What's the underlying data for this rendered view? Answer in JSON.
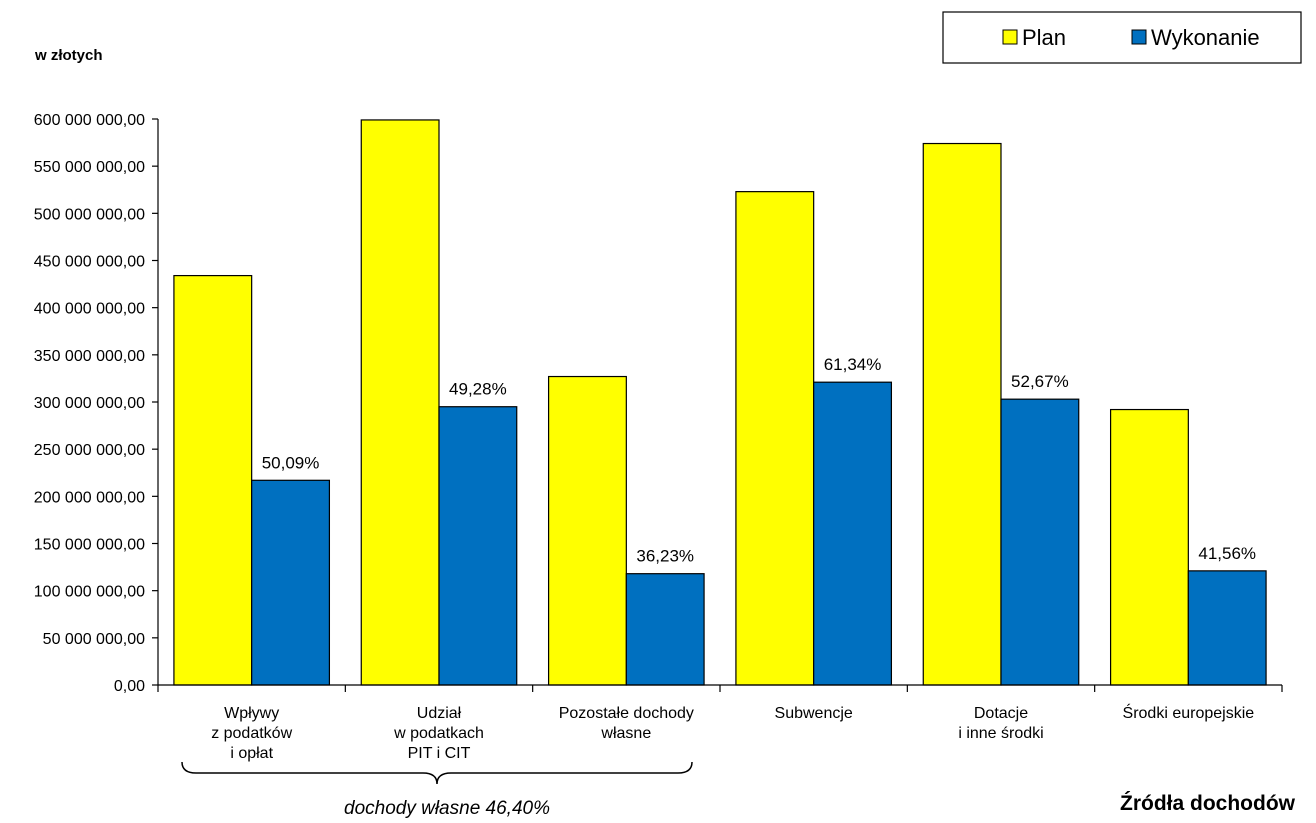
{
  "chart_data": {
    "type": "bar",
    "ylabel": "w złotych",
    "xlabel": "Źródła dochodów",
    "ylim": [
      0,
      600000000
    ],
    "ytick_step": 50000000,
    "ytick_labels": [
      "0,00",
      "50 000 000,00",
      "100 000 000,00",
      "150 000 000,00",
      "200 000 000,00",
      "250 000 000,00",
      "300 000 000,00",
      "350 000 000,00",
      "400 000 000,00",
      "450 000 000,00",
      "500 000 000,00",
      "550 000 000,00",
      "600 000 000,00"
    ],
    "categories": [
      [
        "Wpływy",
        "z podatków",
        "i opłat"
      ],
      [
        "Udział",
        "w podatkach",
        "PIT i CIT"
      ],
      [
        "Pozostałe dochody",
        "własne"
      ],
      [
        "Subwencje"
      ],
      [
        "Dotacje",
        "i inne środki"
      ],
      [
        "Środki europejskie"
      ]
    ],
    "series": [
      {
        "name": "Plan",
        "color": "#ffff00",
        "values": [
          434000000,
          599000000,
          327000000,
          523000000,
          574000000,
          292000000
        ]
      },
      {
        "name": "Wykonanie",
        "color": "#0070c0",
        "values": [
          217000000,
          295000000,
          118000000,
          321000000,
          303000000,
          121000000
        ]
      }
    ],
    "data_labels": [
      "50,09%",
      "49,28%",
      "36,23%",
      "61,34%",
      "52,67%",
      "41,56%"
    ],
    "bracket_note": "dochody własne 46,40%",
    "legend_position": "top-right",
    "grid": false
  }
}
